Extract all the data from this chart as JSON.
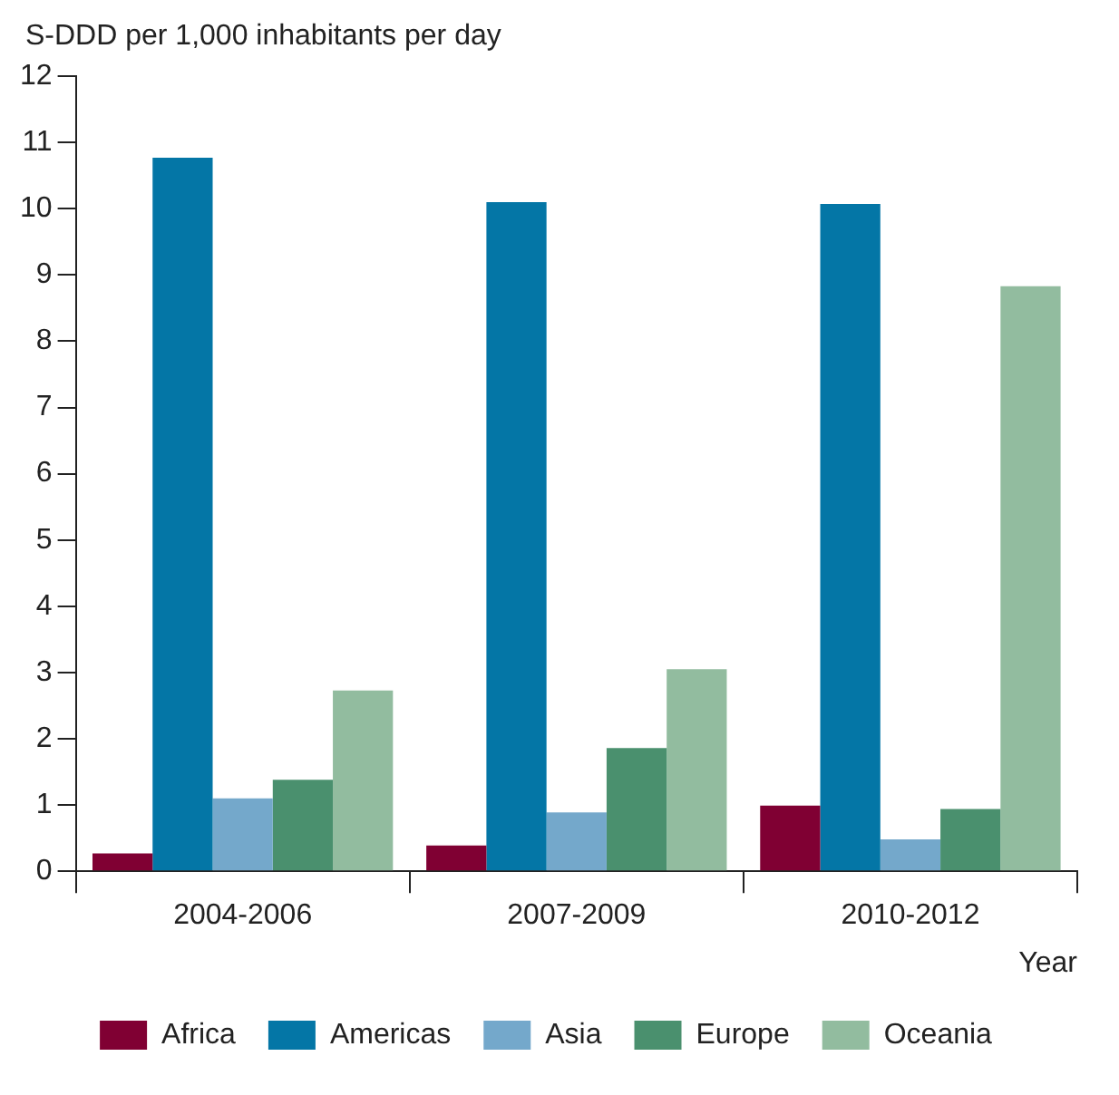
{
  "chart_data": {
    "type": "bar",
    "ylabel": "S-DDD per 1,000 inhabitants per day",
    "xlabel": "Year",
    "categories": [
      "2004-2006",
      "2007-2009",
      "2010-2012"
    ],
    "series": [
      {
        "name": "Africa",
        "color": "#800033",
        "values": [
          0.27,
          0.39,
          0.99
        ]
      },
      {
        "name": "Americas",
        "color": "#0476a6",
        "values": [
          10.77,
          10.1,
          10.07
        ]
      },
      {
        "name": "Asia",
        "color": "#74a8cb",
        "values": [
          1.1,
          0.89,
          0.48
        ]
      },
      {
        "name": "Europe",
        "color": "#4a906e",
        "values": [
          1.38,
          1.86,
          0.94
        ]
      },
      {
        "name": "Oceania",
        "color": "#92bc9f",
        "values": [
          2.73,
          3.05,
          8.83
        ]
      }
    ],
    "ylim": [
      0,
      12
    ],
    "yticks": [
      0,
      1,
      2,
      3,
      4,
      5,
      6,
      7,
      8,
      9,
      10,
      11,
      12
    ],
    "grid": false,
    "legend": "bottom"
  }
}
